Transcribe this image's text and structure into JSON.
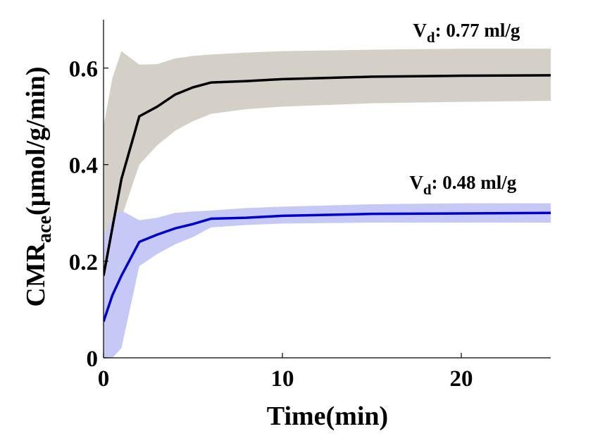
{
  "chart_data": {
    "type": "line",
    "xlabel": "Time(min)",
    "ylabel_main": "CMR",
    "ylabel_sub": "ace",
    "ylabel_unit": "(μmol/g/min)",
    "xlim": [
      0,
      25
    ],
    "ylim": [
      0,
      0.7
    ],
    "xticks": [
      0,
      10,
      20
    ],
    "yticks": [
      0,
      0.2,
      0.4,
      0.6
    ],
    "xtick_labels": [
      "0",
      "10",
      "20"
    ],
    "ytick_labels": [
      "0",
      "0.2",
      "0.4",
      "0.6"
    ],
    "grid": false,
    "series": [
      {
        "line_color": "#000000",
        "band_color": "#d4d0c8",
        "x": [
          0,
          0.5,
          1,
          2,
          3,
          4,
          5,
          6,
          8,
          10,
          15,
          20,
          25
        ],
        "y": [
          0.17,
          0.27,
          0.37,
          0.5,
          0.52,
          0.545,
          0.56,
          0.57,
          0.573,
          0.577,
          0.582,
          0.584,
          0.585
        ],
        "band_upper": [
          0.48,
          0.58,
          0.635,
          0.607,
          0.608,
          0.62,
          0.625,
          0.628,
          0.632,
          0.635,
          0.638,
          0.64,
          0.64
        ],
        "band_lower": [
          0.23,
          0.28,
          0.29,
          0.4,
          0.44,
          0.47,
          0.49,
          0.505,
          0.515,
          0.52,
          0.527,
          0.53,
          0.532
        ],
        "annotation_main": "V",
        "annotation_sub": "d",
        "annotation_rest": ": 0.77 ml/g",
        "annotation_x": 17.3,
        "annotation_y": 0.665
      },
      {
        "line_color": "#0000cc",
        "band_color": "#c6c8f5",
        "x": [
          0,
          0.5,
          1,
          2,
          3,
          4,
          5,
          6,
          8,
          10,
          15,
          20,
          25
        ],
        "y": [
          0.075,
          0.13,
          0.17,
          0.24,
          0.255,
          0.268,
          0.277,
          0.288,
          0.29,
          0.294,
          0.298,
          0.299,
          0.3
        ],
        "band_upper": [
          0.25,
          0.29,
          0.305,
          0.285,
          0.29,
          0.3,
          0.303,
          0.305,
          0.31,
          0.313,
          0.318,
          0.32,
          0.32
        ],
        "band_lower": [
          0,
          0,
          0.02,
          0.19,
          0.215,
          0.235,
          0.25,
          0.27,
          0.275,
          0.278,
          0.28,
          0.28,
          0.28
        ],
        "annotation_main": "V",
        "annotation_sub": "d",
        "annotation_rest": ": 0.48 ml/g",
        "annotation_x": 17.1,
        "annotation_y": 0.35
      }
    ]
  }
}
